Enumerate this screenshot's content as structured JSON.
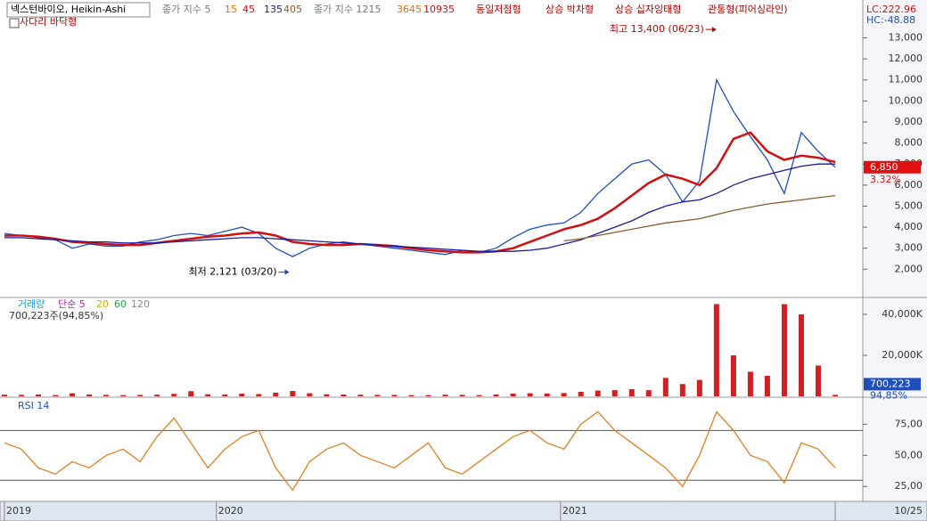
{
  "header": {
    "title": "넥스턴바이오, Heikin-Ashi",
    "subtitle": "사다리 바닥형",
    "items": [
      {
        "text": "종가 지수 5",
        "color": "#777777"
      },
      {
        "text": "15",
        "color": "#e07000"
      },
      {
        "text": "45",
        "color": "#d01010"
      },
      {
        "text": "135",
        "color": "#1a1aa0"
      },
      {
        "text": "405",
        "color": "#8b5a2b"
      },
      {
        "text": "종가 지수 1215",
        "color": "#777777"
      },
      {
        "text": "3645",
        "color": "#e07000"
      },
      {
        "text": "10935",
        "color": "#d01010"
      },
      {
        "text": "동일저점형",
        "color": "#b00000"
      },
      {
        "text": "상승 박차형",
        "color": "#b00000"
      },
      {
        "text": "상승 십자잉태형",
        "color": "#b00000"
      },
      {
        "text": "관통형(피어싱라인)",
        "color": "#b00000"
      }
    ],
    "lc": "LC:222.96",
    "hc": "HC:-48.88"
  },
  "chart_data": [
    {
      "type": "line",
      "ylim": [
        700,
        14800
      ],
      "yticks": [
        {
          "value": 2000,
          "label": "2,000"
        },
        {
          "value": 3000,
          "label": "3,000"
        },
        {
          "value": 4000,
          "label": "4,000"
        },
        {
          "value": 5000,
          "label": "5,000"
        },
        {
          "value": 6000,
          "label": "6,000"
        },
        {
          "value": 7000,
          "label": "7,000"
        },
        {
          "value": 8000,
          "label": "8,000"
        },
        {
          "value": 9000,
          "label": "9,000"
        },
        {
          "value": 10000,
          "label": "10,000"
        },
        {
          "value": 11000,
          "label": "11,000"
        },
        {
          "value": 12000,
          "label": "12,000"
        },
        {
          "value": 13000,
          "label": "13,000"
        }
      ],
      "series": [
        {
          "name": "넥스턴바이오",
          "color": "#1f4fbf",
          "values": [
            3700,
            3600,
            3500,
            3400,
            3000,
            3200,
            3100,
            3100,
            3300,
            3400,
            3600,
            3700,
            3600,
            3800,
            4000,
            3700,
            3000,
            2600,
            3000,
            3200,
            3300,
            3200,
            3100,
            3000,
            2900,
            2800,
            2700,
            2900,
            2800,
            3000,
            3500,
            3900,
            4100,
            4200,
            4700,
            5600,
            6300,
            7000,
            7200,
            6500,
            5200,
            6200,
            11000,
            9500,
            8300,
            7200,
            5600,
            8500,
            7600,
            6850
          ]
        },
        {
          "name": "45",
          "color": "#d01010",
          "values": [
            3600,
            3600,
            3550,
            3450,
            3300,
            3250,
            3200,
            3150,
            3150,
            3250,
            3350,
            3450,
            3550,
            3600,
            3700,
            3750,
            3600,
            3300,
            3200,
            3150,
            3150,
            3200,
            3150,
            3100,
            3000,
            2900,
            2850,
            2800,
            2800,
            2850,
            3000,
            3300,
            3600,
            3900,
            4100,
            4400,
            4900,
            5500,
            6100,
            6500,
            6300,
            6000,
            6800,
            8200,
            8500,
            7600,
            7200,
            7400,
            7300,
            7100
          ]
        },
        {
          "name": "135",
          "color": "#1a1aa0",
          "values": [
            3500,
            3500,
            3450,
            3400,
            3350,
            3300,
            3300,
            3250,
            3250,
            3250,
            3300,
            3350,
            3400,
            3450,
            3500,
            3500,
            3450,
            3400,
            3350,
            3300,
            3250,
            3200,
            3150,
            3100,
            3050,
            3000,
            2950,
            2900,
            2850,
            2850,
            2850,
            2900,
            3000,
            3200,
            3400,
            3700,
            4000,
            4300,
            4700,
            5000,
            5200,
            5300,
            5600,
            6000,
            6300,
            6500,
            6700,
            6900,
            7000,
            7000
          ]
        },
        {
          "name": "405",
          "color": "#8b5a2b",
          "values": [
            null,
            null,
            null,
            null,
            null,
            null,
            null,
            null,
            null,
            null,
            null,
            null,
            null,
            null,
            null,
            null,
            null,
            null,
            null,
            null,
            null,
            null,
            null,
            null,
            null,
            null,
            null,
            null,
            null,
            null,
            null,
            null,
            null,
            3350,
            3450,
            3600,
            3750,
            3900,
            4050,
            4200,
            4300,
            4400,
            4600,
            4800,
            4950,
            5100,
            5200,
            5300,
            5400,
            5500
          ]
        }
      ],
      "last": {
        "value": 6850,
        "label": "6,850"
      },
      "change": "3.32%",
      "annotations": [
        {
          "text": "최고 13,400 (06/23)",
          "x": 42,
          "y": 13400
        },
        {
          "text": "최저 2,121 (03/20)",
          "x": 16.8,
          "y": 2121
        }
      ]
    },
    {
      "type": "bar",
      "legend": [
        {
          "text": "거래량",
          "color": "#1aa0c0"
        },
        {
          "text": "단순 5",
          "color": "#c020c0"
        },
        {
          "text": "20",
          "color": "#d0b000"
        },
        {
          "text": "60",
          "color": "#20a040"
        },
        {
          "text": "120",
          "color": "#888888"
        }
      ],
      "info": "700,223주(94,85%)",
      "ylim": [
        0,
        47800
      ],
      "yticks": [
        {
          "value": 20000,
          "label": "20,000K"
        },
        {
          "value": 40000,
          "label": "40,000K"
        }
      ],
      "color": "#d02020",
      "values": [
        800,
        700,
        900,
        600,
        1500,
        900,
        700,
        600,
        700,
        800,
        1200,
        2500,
        1000,
        900,
        1300,
        1100,
        1800,
        2600,
        1500,
        1000,
        900,
        800,
        700,
        700,
        600,
        600,
        800,
        700,
        600,
        900,
        1300,
        1500,
        1400,
        1600,
        2200,
        2800,
        3000,
        3500,
        3000,
        9000,
        6000,
        8000,
        45000,
        20000,
        12000,
        10000,
        45000,
        40000,
        15000,
        700.223
      ],
      "last": {
        "value": 700.223,
        "label": "700,223"
      },
      "ratio": "94,85%"
    },
    {
      "type": "line",
      "title": "RSI 14",
      "ylim": [
        13,
        96
      ],
      "yticks": [
        {
          "value": 25,
          "label": "25,00"
        },
        {
          "value": 50,
          "label": "50,00"
        },
        {
          "value": 75,
          "label": "75,00"
        }
      ],
      "reference_lines": [
        70,
        30
      ],
      "series": [
        {
          "name": "RSI 14",
          "color": "#e08020",
          "values": [
            60,
            55,
            40,
            35,
            45,
            40,
            50,
            55,
            45,
            65,
            80,
            60,
            40,
            55,
            65,
            70,
            40,
            22,
            45,
            55,
            60,
            50,
            45,
            40,
            50,
            60,
            40,
            35,
            45,
            55,
            65,
            70,
            60,
            55,
            75,
            85,
            70,
            60,
            50,
            40,
            25,
            50,
            85,
            70,
            50,
            45,
            28,
            60,
            55,
            40
          ]
        }
      ],
      "xlim": [
        0,
        49
      ],
      "xticks": [
        {
          "value": 0,
          "label": "2019"
        },
        {
          "value": 12.5,
          "label": "2020"
        },
        {
          "value": 32.8,
          "label": "2021"
        },
        {
          "value": 49,
          "label": "10/25"
        }
      ]
    }
  ]
}
